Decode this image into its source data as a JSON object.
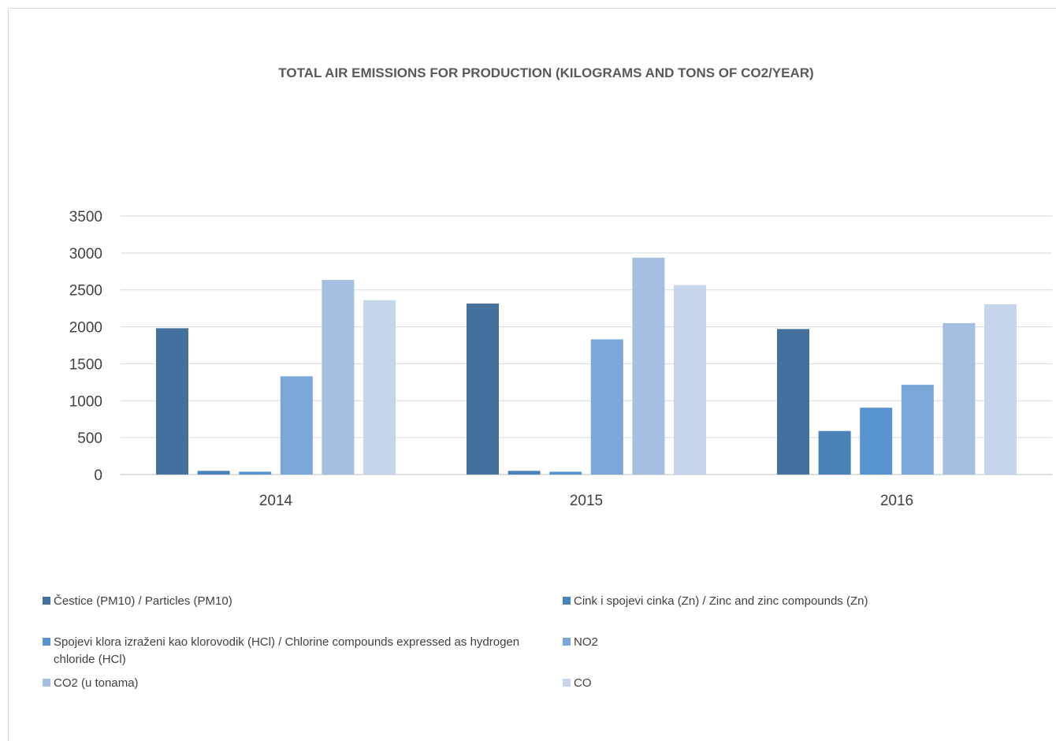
{
  "chart_data": {
    "type": "bar",
    "title": "TOTAL AIR EMISSIONS FOR PRODUCTION (KILOGRAMS AND TONS OF CO2/YEAR)",
    "xlabel": "",
    "ylabel": "",
    "categories": [
      "2014",
      "2015",
      "2016"
    ],
    "ylim": [
      0,
      3500
    ],
    "yticks": [
      0,
      500,
      1000,
      1500,
      2000,
      2500,
      3000,
      3500
    ],
    "grid": true,
    "legend_position": "bottom",
    "series": [
      {
        "name": "Čestice (PM10) / Particles (PM10)",
        "color": "#44709e",
        "values": [
          1980,
          2315,
          1970
        ]
      },
      {
        "name": "Cink i spojevi cinka (Zn) / Zinc and zinc compounds (Zn)",
        "color": "#4a83b8",
        "values": [
          50,
          50,
          590
        ]
      },
      {
        "name": "Spojevi klora izraženi kao klorovodik (HCl) / Chlorine compounds expressed as hydrogen chloride (HCl)",
        "color": "#5794cf",
        "values": [
          38,
          38,
          905
        ]
      },
      {
        "name": "NO2",
        "color": "#7aa7d7",
        "values": [
          1330,
          1830,
          1215
        ]
      },
      {
        "name": "CO2 (u tonama)",
        "color": "#a5bfe3",
        "values": [
          2635,
          2935,
          2050
        ]
      },
      {
        "name": "CO",
        "color": "#c5d5eb",
        "values": [
          2360,
          2565,
          2305
        ]
      }
    ]
  },
  "legend": {
    "items": [
      {
        "label": "Čestice (PM10) / Particles (PM10)"
      },
      {
        "label": "Cink i spojevi cinka (Zn) / Zinc and zinc compounds (Zn)"
      },
      {
        "label": "Spojevi klora izraženi kao klorovodik (HCl) / Chlorine compounds expressed as hydrogen chloride (HCl)"
      },
      {
        "label": "NO2"
      },
      {
        "label": "CO2 (u tonama)"
      },
      {
        "label": "CO"
      }
    ]
  }
}
